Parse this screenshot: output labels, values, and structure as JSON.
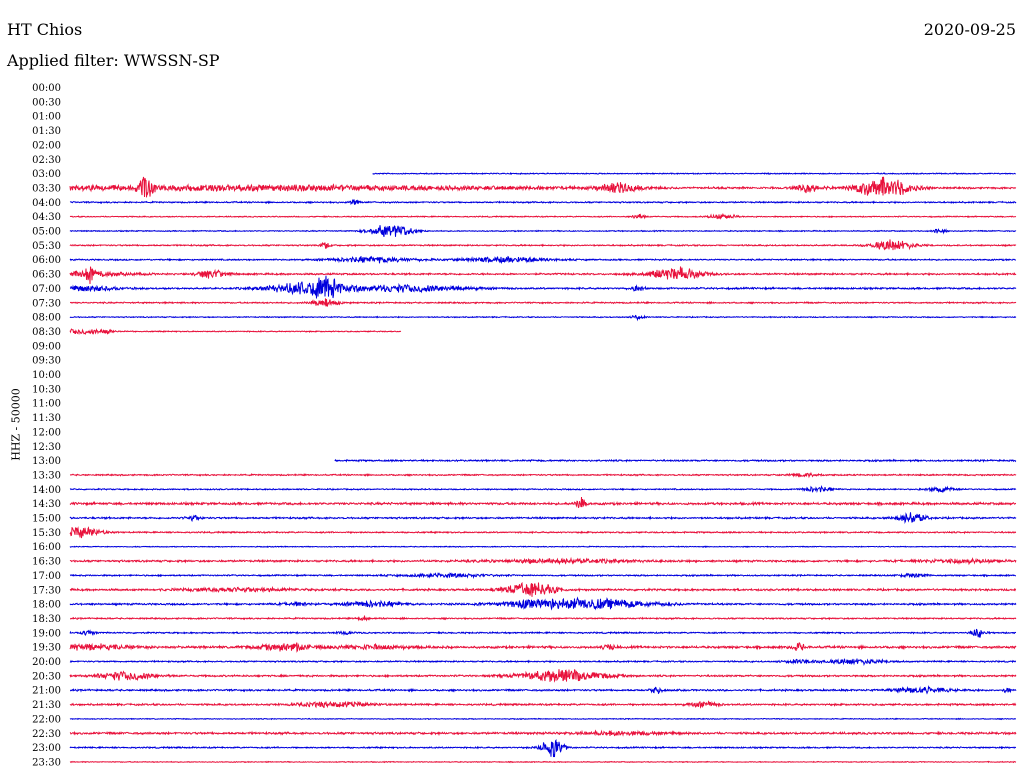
{
  "header": {
    "station": "HT Chios",
    "date": "2020-09-25",
    "filter": "Applied filter: WWSSN-SP"
  },
  "colors": {
    "odd": "#e8123c",
    "even": "#0000dd"
  },
  "chart_data": {
    "type": "line",
    "title": "HT Chios",
    "ylabel": "HHZ - 50000",
    "y_tick_labels": [
      "00:00",
      "00:30",
      "01:00",
      "01:30",
      "02:00",
      "02:30",
      "03:00",
      "03:30",
      "04:00",
      "04:30",
      "05:00",
      "05:30",
      "06:00",
      "06:30",
      "07:00",
      "07:30",
      "08:00",
      "08:30",
      "09:00",
      "09:30",
      "10:00",
      "10:30",
      "11:00",
      "11:30",
      "12:00",
      "12:30",
      "13:00",
      "13:30",
      "14:00",
      "14:30",
      "15:00",
      "15:30",
      "16:00",
      "16:30",
      "17:00",
      "17:30",
      "18:00",
      "18:30",
      "19:00",
      "19:30",
      "20:00",
      "20:30",
      "21:00",
      "21:30",
      "22:00",
      "22:30",
      "23:00",
      "23:30"
    ],
    "trace_window_minutes": 30,
    "series": [
      {
        "start": "03:00",
        "from": 0.32,
        "to": 1.0,
        "noise": 0.6,
        "events": []
      },
      {
        "start": "03:30",
        "from": 0.0,
        "to": 1.0,
        "noise": 1.0,
        "events": [
          [
            0.08,
            12,
            0.005
          ],
          [
            0.2,
            3,
            0.2
          ],
          [
            0.58,
            5,
            0.015
          ],
          [
            0.78,
            5,
            0.01
          ],
          [
            0.86,
            12,
            0.02
          ]
        ]
      },
      {
        "start": "04:00",
        "from": 0.0,
        "to": 1.0,
        "noise": 0.8,
        "events": [
          [
            0.3,
            3,
            0.003
          ]
        ]
      },
      {
        "start": "04:30",
        "from": 0.0,
        "to": 1.0,
        "noise": 0.6,
        "events": [
          [
            0.6,
            3,
            0.005
          ],
          [
            0.69,
            3,
            0.01
          ]
        ]
      },
      {
        "start": "05:00",
        "from": 0.0,
        "to": 1.0,
        "noise": 0.6,
        "events": [
          [
            0.34,
            8,
            0.015
          ],
          [
            0.92,
            3,
            0.005
          ]
        ]
      },
      {
        "start": "05:30",
        "from": 0.0,
        "to": 1.0,
        "noise": 0.8,
        "events": [
          [
            0.27,
            4,
            0.003
          ],
          [
            0.87,
            6,
            0.015
          ]
        ]
      },
      {
        "start": "06:00",
        "from": 0.0,
        "to": 1.0,
        "noise": 0.8,
        "events": [
          [
            0.32,
            3,
            0.03
          ],
          [
            0.46,
            3,
            0.03
          ]
        ]
      },
      {
        "start": "06:30",
        "from": 0.0,
        "to": 1.0,
        "noise": 1.0,
        "events": [
          [
            0.02,
            3,
            0.03
          ],
          [
            0.02,
            8,
            0.003
          ],
          [
            0.15,
            5,
            0.01
          ],
          [
            0.64,
            7,
            0.02
          ]
        ]
      },
      {
        "start": "07:00",
        "from": 0.0,
        "to": 1.0,
        "noise": 1.0,
        "events": [
          [
            0.02,
            3,
            0.02
          ],
          [
            0.25,
            6,
            0.03
          ],
          [
            0.27,
            9,
            0.01
          ],
          [
            0.36,
            4,
            0.04
          ],
          [
            0.6,
            3,
            0.005
          ]
        ]
      },
      {
        "start": "07:30",
        "from": 0.0,
        "to": 1.0,
        "noise": 0.8,
        "events": [
          [
            0.27,
            4,
            0.01
          ]
        ]
      },
      {
        "start": "08:00",
        "from": 0.0,
        "to": 1.0,
        "noise": 0.6,
        "events": [
          [
            0.6,
            3,
            0.004
          ]
        ]
      },
      {
        "start": "08:30",
        "from": 0.0,
        "to": 0.35,
        "noise": 0.6,
        "events": [
          [
            0.01,
            3,
            0.02
          ],
          [
            0.04,
            2,
            0.003
          ]
        ]
      },
      {
        "start": "13:00",
        "from": 0.28,
        "to": 1.0,
        "noise": 0.9,
        "events": []
      },
      {
        "start": "13:30",
        "from": 0.0,
        "to": 1.0,
        "noise": 0.8,
        "events": [
          [
            0.78,
            2,
            0.01
          ]
        ]
      },
      {
        "start": "14:00",
        "from": 0.0,
        "to": 1.0,
        "noise": 0.7,
        "events": [
          [
            0.79,
            3,
            0.01
          ],
          [
            0.92,
            3,
            0.01
          ]
        ]
      },
      {
        "start": "14:30",
        "from": 0.0,
        "to": 1.0,
        "noise": 1.3,
        "events": [
          [
            0.54,
            8,
            0.003
          ]
        ]
      },
      {
        "start": "15:00",
        "from": 0.0,
        "to": 1.0,
        "noise": 1.0,
        "events": [
          [
            0.13,
            3,
            0.005
          ],
          [
            0.89,
            6,
            0.01
          ]
        ]
      },
      {
        "start": "15:30",
        "from": 0.0,
        "to": 1.0,
        "noise": 0.8,
        "events": [
          [
            0.01,
            6,
            0.015
          ]
        ]
      },
      {
        "start": "16:00",
        "from": 0.0,
        "to": 1.0,
        "noise": 0.5,
        "events": []
      },
      {
        "start": "16:30",
        "from": 0.0,
        "to": 1.0,
        "noise": 1.1,
        "events": [
          [
            0.52,
            2,
            0.05
          ],
          [
            0.94,
            2,
            0.03
          ]
        ]
      },
      {
        "start": "17:00",
        "from": 0.0,
        "to": 1.0,
        "noise": 0.8,
        "events": [
          [
            0.4,
            2,
            0.03
          ],
          [
            0.89,
            2,
            0.01
          ]
        ]
      },
      {
        "start": "17:30",
        "from": 0.0,
        "to": 1.0,
        "noise": 1.1,
        "events": [
          [
            0.18,
            2,
            0.04
          ],
          [
            0.49,
            7,
            0.015
          ],
          [
            0.48,
            3,
            0.02
          ]
        ]
      },
      {
        "start": "18:00",
        "from": 0.0,
        "to": 1.0,
        "noise": 1.0,
        "events": [
          [
            0.24,
            2,
            0.01
          ],
          [
            0.32,
            3,
            0.02
          ],
          [
            0.54,
            6,
            0.05
          ],
          [
            0.48,
            2,
            0.01
          ]
        ]
      },
      {
        "start": "18:30",
        "from": 0.0,
        "to": 1.0,
        "noise": 0.8,
        "events": [
          [
            0.31,
            3,
            0.003
          ]
        ]
      },
      {
        "start": "19:00",
        "from": 0.0,
        "to": 1.0,
        "noise": 0.8,
        "events": [
          [
            0.02,
            3,
            0.005
          ],
          [
            0.29,
            2,
            0.005
          ],
          [
            0.96,
            5,
            0.005
          ]
        ]
      },
      {
        "start": "19:30",
        "from": 0.0,
        "to": 1.0,
        "noise": 1.3,
        "events": [
          [
            0.02,
            3,
            0.03
          ],
          [
            0.23,
            4,
            0.02
          ],
          [
            0.32,
            2,
            0.03
          ],
          [
            0.57,
            3,
            0.005
          ],
          [
            0.77,
            4,
            0.005
          ]
        ]
      },
      {
        "start": "20:00",
        "from": 0.0,
        "to": 1.0,
        "noise": 0.8,
        "events": [
          [
            0.77,
            2,
            0.01
          ],
          [
            0.83,
            3,
            0.02
          ]
        ]
      },
      {
        "start": "20:30",
        "from": 0.0,
        "to": 1.0,
        "noise": 1.0,
        "events": [
          [
            0.06,
            5,
            0.02
          ],
          [
            0.52,
            7,
            0.03
          ]
        ]
      },
      {
        "start": "21:00",
        "from": 0.0,
        "to": 1.0,
        "noise": 1.0,
        "events": [
          [
            0.62,
            4,
            0.004
          ],
          [
            0.9,
            3,
            0.02
          ],
          [
            0.99,
            3,
            0.003
          ]
        ]
      },
      {
        "start": "21:30",
        "from": 0.0,
        "to": 1.0,
        "noise": 1.0,
        "events": [
          [
            0.28,
            3,
            0.025
          ],
          [
            0.67,
            3,
            0.01
          ]
        ]
      },
      {
        "start": "22:00",
        "from": 0.0,
        "to": 1.0,
        "noise": 0.5,
        "events": []
      },
      {
        "start": "22:30",
        "from": 0.0,
        "to": 1.0,
        "noise": 1.2,
        "events": [
          [
            0.58,
            2,
            0.03
          ]
        ]
      },
      {
        "start": "23:00",
        "from": 0.0,
        "to": 1.0,
        "noise": 0.8,
        "events": [
          [
            0.51,
            11,
            0.008
          ]
        ]
      },
      {
        "start": "23:30",
        "from": 0.0,
        "to": 1.0,
        "noise": 0.5,
        "events": []
      }
    ]
  }
}
